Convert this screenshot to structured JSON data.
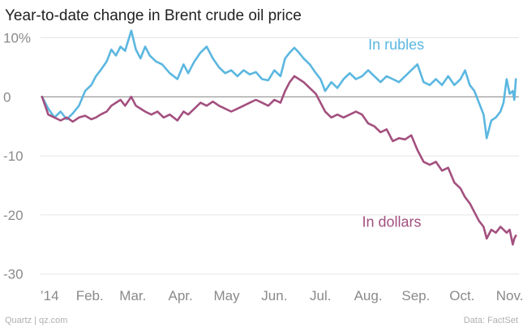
{
  "chart_data": {
    "type": "line",
    "title": "Year-to-date change in Brent crude oil price",
    "source_left": "Quartz | qz.com",
    "source_right": "Data: FactSet",
    "y_tick_labels": [
      "10%",
      "0",
      "-10",
      "-20",
      "-30"
    ],
    "y_tick_values": [
      10,
      0,
      -10,
      -20,
      -30
    ],
    "ylim": [
      -31,
      12
    ],
    "x_tick_labels": [
      "’14",
      "Feb.",
      "Mar.",
      "Apr.",
      "May",
      "Jun.",
      "Jul.",
      "Aug.",
      "Sep.",
      "Oct.",
      "Nov."
    ],
    "x_tick_values": [
      "2014-01-01",
      "2014-02-01",
      "2014-03-01",
      "2014-04-01",
      "2014-05-01",
      "2014-06-01",
      "2014-07-01",
      "2014-08-01",
      "2014-09-01",
      "2014-10-01",
      "2014-11-01"
    ],
    "xlim": [
      "2013-12-31",
      "2014-11-07"
    ],
    "grid": "horizontal",
    "zero_line": true,
    "colors": {
      "rubles": "#5bb7e0",
      "dollars": "#a3507f",
      "grid": "#e5e5e5",
      "zero": "#9a9a9a"
    },
    "series": [
      {
        "name": "In rubles",
        "color": "#5bb7e0",
        "points": [
          [
            "2014-01-01",
            0
          ],
          [
            "2014-01-05",
            -2
          ],
          [
            "2014-01-09",
            -3.5
          ],
          [
            "2014-01-13",
            -2.5
          ],
          [
            "2014-01-17",
            -3.8
          ],
          [
            "2014-01-21",
            -2.8
          ],
          [
            "2014-01-25",
            -1.5
          ],
          [
            "2014-01-29",
            1
          ],
          [
            "2014-02-02",
            2
          ],
          [
            "2014-02-05",
            3.5
          ],
          [
            "2014-02-08",
            4.5
          ],
          [
            "2014-02-12",
            6
          ],
          [
            "2014-02-15",
            8
          ],
          [
            "2014-02-18",
            7
          ],
          [
            "2014-02-21",
            8.5
          ],
          [
            "2014-02-24",
            7.8
          ],
          [
            "2014-02-28",
            11.2
          ],
          [
            "2014-03-03",
            8
          ],
          [
            "2014-03-06",
            6.5
          ],
          [
            "2014-03-09",
            8.5
          ],
          [
            "2014-03-12",
            7
          ],
          [
            "2014-03-16",
            6
          ],
          [
            "2014-03-20",
            5.5
          ],
          [
            "2014-03-25",
            4
          ],
          [
            "2014-03-30",
            3
          ],
          [
            "2014-04-03",
            5.5
          ],
          [
            "2014-04-06",
            4
          ],
          [
            "2014-04-10",
            6
          ],
          [
            "2014-04-14",
            7.5
          ],
          [
            "2014-04-18",
            8.5
          ],
          [
            "2014-04-22",
            6.5
          ],
          [
            "2014-04-26",
            5
          ],
          [
            "2014-04-30",
            4
          ],
          [
            "2014-05-04",
            4.5
          ],
          [
            "2014-05-08",
            3.5
          ],
          [
            "2014-05-12",
            4.5
          ],
          [
            "2014-05-16",
            3.8
          ],
          [
            "2014-05-20",
            4.2
          ],
          [
            "2014-05-24",
            3
          ],
          [
            "2014-05-28",
            2.8
          ],
          [
            "2014-06-01",
            4.5
          ],
          [
            "2014-06-05",
            3.5
          ],
          [
            "2014-06-08",
            6.5
          ],
          [
            "2014-06-11",
            7.5
          ],
          [
            "2014-06-14",
            8.3
          ],
          [
            "2014-06-17",
            7.5
          ],
          [
            "2014-06-20",
            6.5
          ],
          [
            "2014-06-24",
            5.5
          ],
          [
            "2014-06-28",
            4
          ],
          [
            "2014-07-01",
            3
          ],
          [
            "2014-07-04",
            1
          ],
          [
            "2014-07-08",
            2.5
          ],
          [
            "2014-07-12",
            1.5
          ],
          [
            "2014-07-16",
            3
          ],
          [
            "2014-07-20",
            4
          ],
          [
            "2014-07-24",
            3
          ],
          [
            "2014-07-28",
            3.5
          ],
          [
            "2014-08-01",
            4.5
          ],
          [
            "2014-08-05",
            3.5
          ],
          [
            "2014-08-09",
            2.5
          ],
          [
            "2014-08-13",
            3.5
          ],
          [
            "2014-08-17",
            3
          ],
          [
            "2014-08-21",
            2.5
          ],
          [
            "2014-08-25",
            3.5
          ],
          [
            "2014-08-29",
            4.5
          ],
          [
            "2014-09-02",
            5.5
          ],
          [
            "2014-09-06",
            2.5
          ],
          [
            "2014-09-10",
            2
          ],
          [
            "2014-09-14",
            3
          ],
          [
            "2014-09-18",
            2
          ],
          [
            "2014-09-22",
            3.5
          ],
          [
            "2014-09-26",
            2
          ],
          [
            "2014-09-30",
            3
          ],
          [
            "2014-10-03",
            4.5
          ],
          [
            "2014-10-06",
            2
          ],
          [
            "2014-10-09",
            1
          ],
          [
            "2014-10-12",
            -1
          ],
          [
            "2014-10-15",
            -3
          ],
          [
            "2014-10-17",
            -7
          ],
          [
            "2014-10-20",
            -4
          ],
          [
            "2014-10-23",
            -3.5
          ],
          [
            "2014-10-26",
            -2.5
          ],
          [
            "2014-10-28",
            -1
          ],
          [
            "2014-10-30",
            3
          ],
          [
            "2014-11-01",
            0.5
          ],
          [
            "2014-11-03",
            1
          ],
          [
            "2014-11-04",
            -0.5
          ],
          [
            "2014-11-05",
            3
          ]
        ]
      },
      {
        "name": "In dollars",
        "color": "#a3507f",
        "points": [
          [
            "2014-01-01",
            0
          ],
          [
            "2014-01-05",
            -3
          ],
          [
            "2014-01-09",
            -3.5
          ],
          [
            "2014-01-13",
            -4
          ],
          [
            "2014-01-17",
            -3.5
          ],
          [
            "2014-01-21",
            -4.2
          ],
          [
            "2014-01-25",
            -3.5
          ],
          [
            "2014-01-29",
            -3.2
          ],
          [
            "2014-02-02",
            -3.8
          ],
          [
            "2014-02-05",
            -3.5
          ],
          [
            "2014-02-08",
            -3
          ],
          [
            "2014-02-12",
            -2.5
          ],
          [
            "2014-02-15",
            -1.5
          ],
          [
            "2014-02-18",
            -1
          ],
          [
            "2014-02-21",
            -0.5
          ],
          [
            "2014-02-24",
            -1.5
          ],
          [
            "2014-02-28",
            0
          ],
          [
            "2014-03-03",
            -1.5
          ],
          [
            "2014-03-06",
            -2
          ],
          [
            "2014-03-09",
            -2.5
          ],
          [
            "2014-03-13",
            -3
          ],
          [
            "2014-03-17",
            -2.5
          ],
          [
            "2014-03-21",
            -3.5
          ],
          [
            "2014-03-25",
            -3
          ],
          [
            "2014-03-30",
            -4
          ],
          [
            "2014-04-03",
            -2.5
          ],
          [
            "2014-04-06",
            -3
          ],
          [
            "2014-04-10",
            -2
          ],
          [
            "2014-04-14",
            -1
          ],
          [
            "2014-04-18",
            -1.5
          ],
          [
            "2014-04-22",
            -0.8
          ],
          [
            "2014-04-26",
            -1.5
          ],
          [
            "2014-04-30",
            -2
          ],
          [
            "2014-05-04",
            -2.5
          ],
          [
            "2014-05-08",
            -2
          ],
          [
            "2014-05-12",
            -1.5
          ],
          [
            "2014-05-16",
            -1
          ],
          [
            "2014-05-20",
            -0.5
          ],
          [
            "2014-05-24",
            -1
          ],
          [
            "2014-05-28",
            -1.5
          ],
          [
            "2014-06-01",
            -0.5
          ],
          [
            "2014-06-05",
            -1
          ],
          [
            "2014-06-08",
            1
          ],
          [
            "2014-06-11",
            2.5
          ],
          [
            "2014-06-14",
            3.5
          ],
          [
            "2014-06-17",
            3
          ],
          [
            "2014-06-20",
            2.5
          ],
          [
            "2014-06-24",
            1.5
          ],
          [
            "2014-06-28",
            0.5
          ],
          [
            "2014-07-01",
            -1
          ],
          [
            "2014-07-04",
            -2.5
          ],
          [
            "2014-07-08",
            -3.5
          ],
          [
            "2014-07-12",
            -3
          ],
          [
            "2014-07-16",
            -3.5
          ],
          [
            "2014-07-20",
            -3
          ],
          [
            "2014-07-24",
            -2.5
          ],
          [
            "2014-07-28",
            -3
          ],
          [
            "2014-08-01",
            -4.5
          ],
          [
            "2014-08-05",
            -5
          ],
          [
            "2014-08-09",
            -6
          ],
          [
            "2014-08-13",
            -5.5
          ],
          [
            "2014-08-17",
            -7.5
          ],
          [
            "2014-08-21",
            -7
          ],
          [
            "2014-08-25",
            -7.2
          ],
          [
            "2014-08-29",
            -6.5
          ],
          [
            "2014-09-02",
            -9
          ],
          [
            "2014-09-06",
            -11
          ],
          [
            "2014-09-10",
            -11.5
          ],
          [
            "2014-09-14",
            -11
          ],
          [
            "2014-09-18",
            -12.5
          ],
          [
            "2014-09-22",
            -12
          ],
          [
            "2014-09-26",
            -14.5
          ],
          [
            "2014-09-30",
            -15.5
          ],
          [
            "2014-10-03",
            -17
          ],
          [
            "2014-10-06",
            -18
          ],
          [
            "2014-10-09",
            -19.5
          ],
          [
            "2014-10-12",
            -21
          ],
          [
            "2014-10-15",
            -22
          ],
          [
            "2014-10-17",
            -24
          ],
          [
            "2014-10-20",
            -22.5
          ],
          [
            "2014-10-23",
            -23
          ],
          [
            "2014-10-26",
            -22
          ],
          [
            "2014-10-28",
            -22.5
          ],
          [
            "2014-10-30",
            -23
          ],
          [
            "2014-11-01",
            -22.5
          ],
          [
            "2014-11-03",
            -25
          ],
          [
            "2014-11-04",
            -24
          ],
          [
            "2014-11-05",
            -23.5
          ]
        ]
      }
    ],
    "annotations": [
      {
        "text": "In rubles",
        "series": "In rubles",
        "at": [
          "2014-08-01",
          8
        ]
      },
      {
        "text": "In dollars",
        "series": "In dollars",
        "at": [
          "2014-07-28",
          -22
        ]
      }
    ]
  }
}
